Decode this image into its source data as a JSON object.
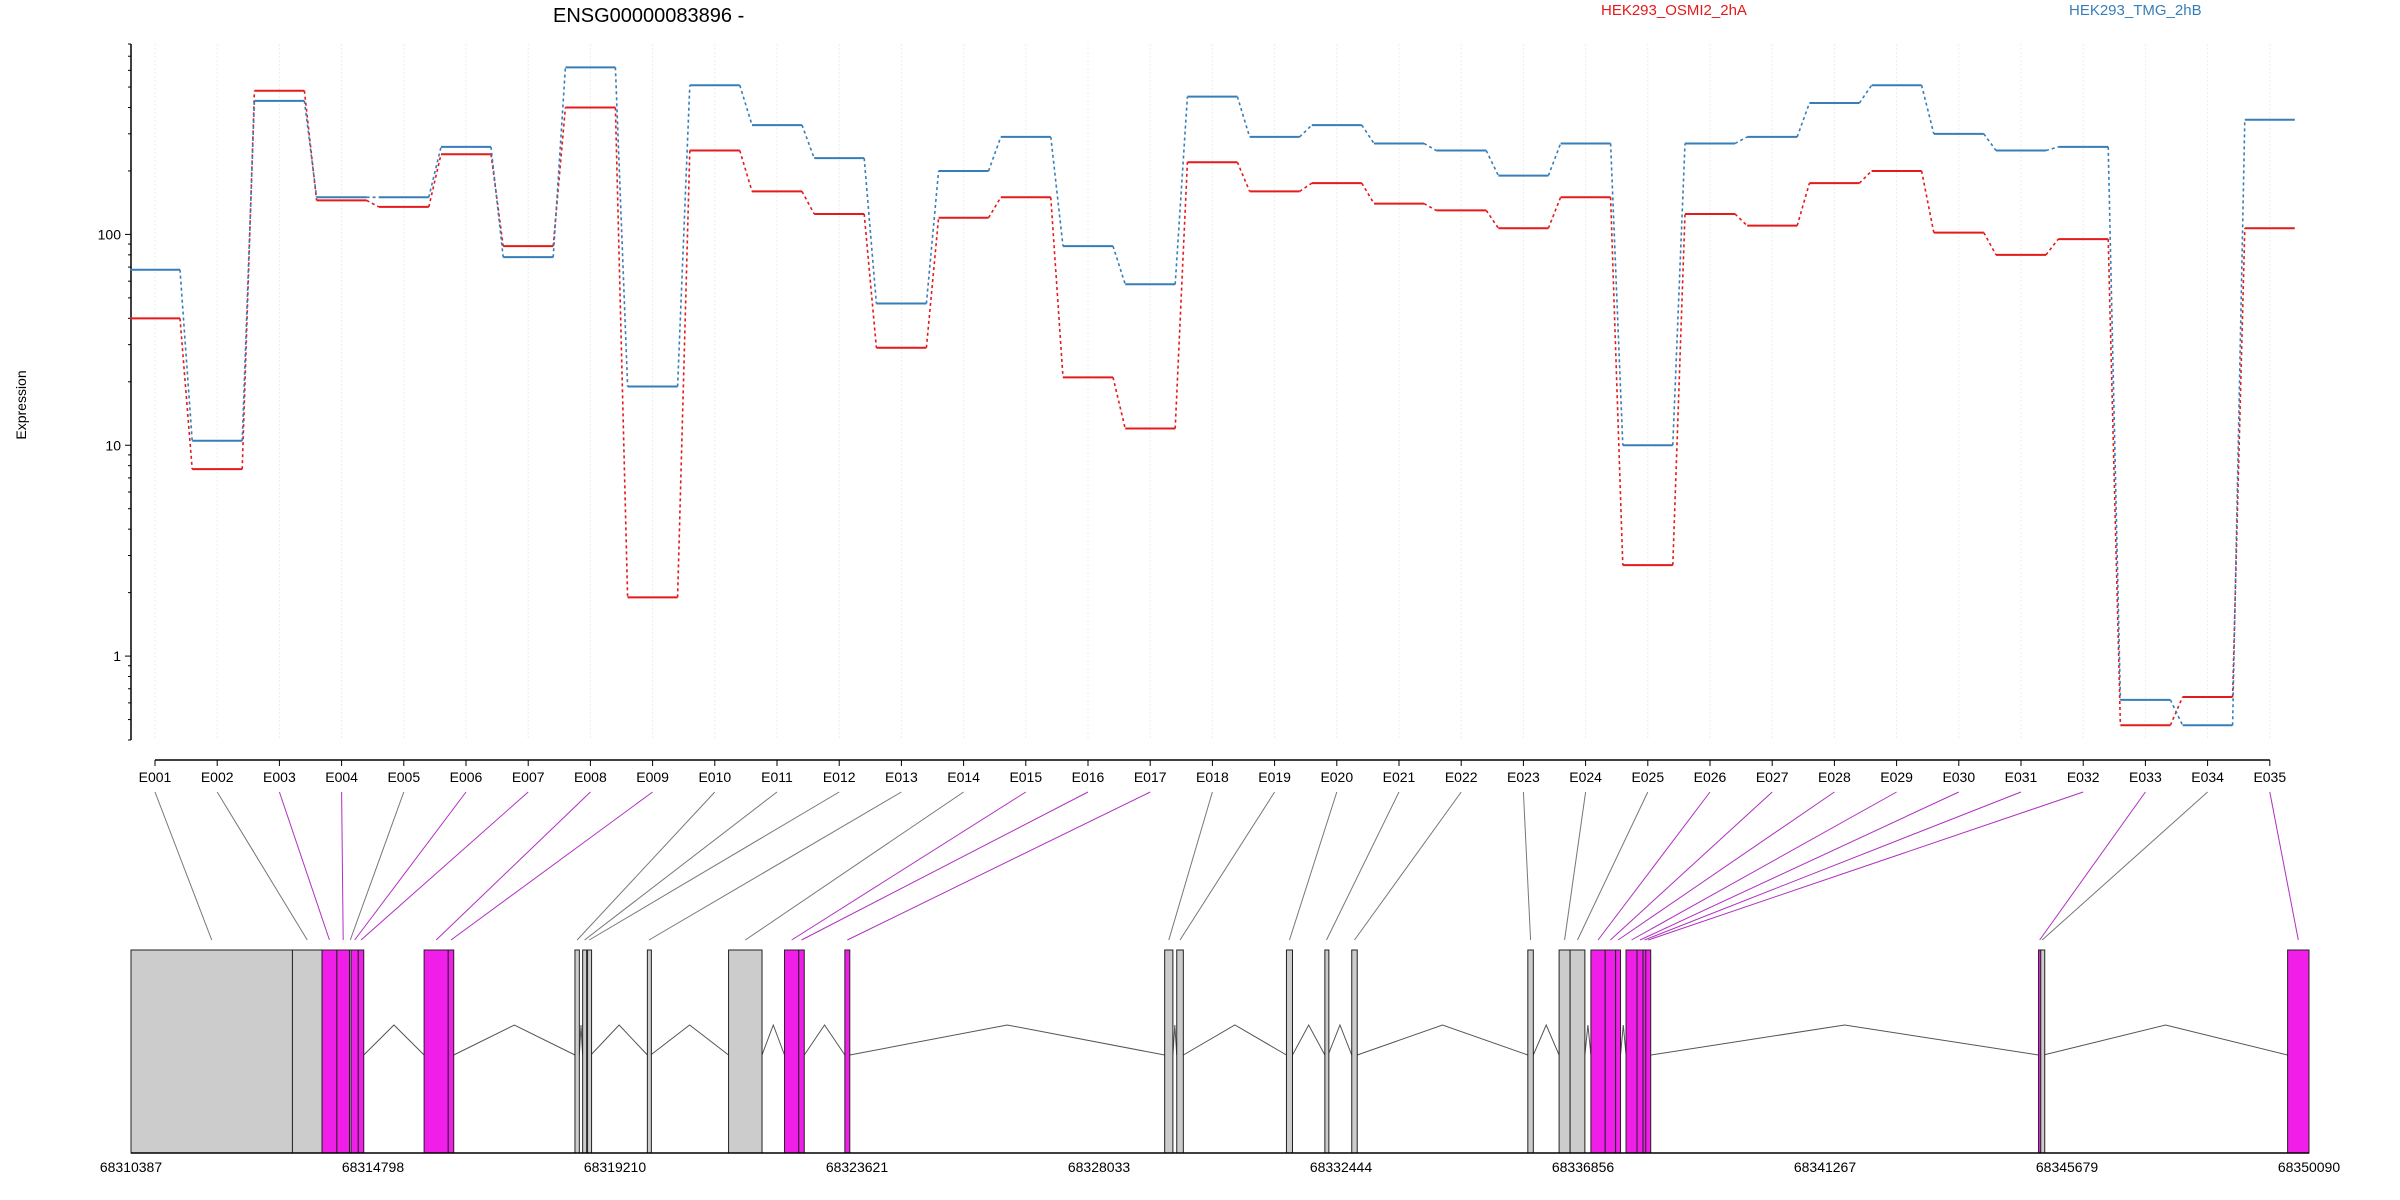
{
  "chart_data": {
    "type": "line",
    "title": "ENSG00000083896 -",
    "ylabel": "Expression",
    "yscale": "log",
    "ylim": [
      0.4,
      800
    ],
    "yticks": [
      1,
      10,
      100
    ],
    "ytick_labels": [
      "1",
      "10",
      "100"
    ],
    "legend_placement": "top",
    "grid": "vertical",
    "categories": [
      "E001",
      "E002",
      "E003",
      "E004",
      "E005",
      "E006",
      "E007",
      "E008",
      "E009",
      "E010",
      "E011",
      "E012",
      "E013",
      "E014",
      "E015",
      "E016",
      "E017",
      "E018",
      "E019",
      "E020",
      "E021",
      "E022",
      "E023",
      "E024",
      "E025",
      "E026",
      "E027",
      "E028",
      "E029",
      "E030",
      "E031",
      "E032",
      "E033",
      "E034",
      "E035"
    ],
    "series": [
      {
        "name": "HEK293_OSMI2_2hA",
        "color": "#e41a1c",
        "values": [
          40,
          7.7,
          480,
          145,
          135,
          240,
          88,
          400,
          1.9,
          250,
          160,
          125,
          29,
          120,
          150,
          21,
          12,
          220,
          160,
          175,
          140,
          130,
          107,
          150,
          2.7,
          125,
          110,
          175,
          200,
          102,
          80,
          95,
          0.47,
          0.64,
          107
        ]
      },
      {
        "name": "HEK293_TMG_2hB",
        "color": "#377eb8",
        "values": [
          68,
          10.5,
          430,
          150,
          150,
          260,
          78,
          620,
          19,
          510,
          330,
          230,
          47,
          200,
          290,
          88,
          58,
          450,
          290,
          330,
          270,
          250,
          190,
          270,
          10,
          270,
          290,
          420,
          510,
          300,
          250,
          260,
          0.62,
          0.47,
          350
        ]
      }
    ],
    "gene_model": {
      "genomic_ticks": [
        "68310387",
        "68314798",
        "68319210",
        "68323621",
        "68328033",
        "68332444",
        "68336856",
        "68341267",
        "68345679",
        "68350090"
      ],
      "exon_colors": {
        "default": "#cccccc",
        "highlight": "#f01ee8"
      },
      "highlighted_exons": [
        "E003",
        "E004",
        "E006",
        "E007",
        "E008",
        "E009",
        "E015",
        "E016",
        "E017",
        "E026",
        "E027",
        "E028",
        "E029",
        "E030",
        "E031",
        "E032",
        "E033",
        "E035"
      ]
    }
  }
}
